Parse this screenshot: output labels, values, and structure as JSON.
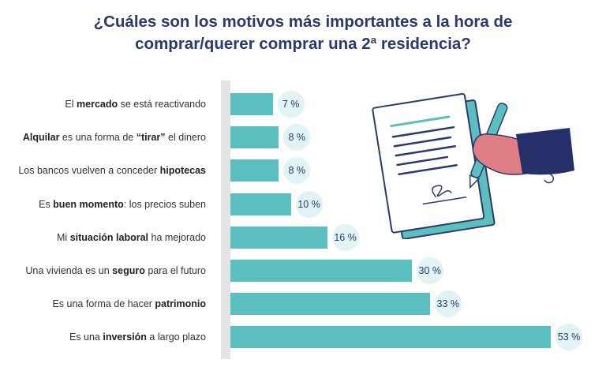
{
  "chart_data": {
    "type": "bar",
    "orientation": "horizontal",
    "title_lines": [
      "¿Cuáles son los motivos más importantes a la hora de",
      "comprar/querer comprar una 2ª residencia?"
    ],
    "categories": [
      "El mercado se está reactivando",
      "Alquilar es una forma de “tirar” el dinero",
      "Los bancos vuelven a conceder hipotecas",
      "Es buen momento: los precios suben",
      "Mi situación laboral ha mejorado",
      "Una vivienda es un seguro para el futuro",
      "Es una forma de hacer patrimonio",
      "Es una inversión a largo plazo"
    ],
    "category_parts": [
      [
        {
          "t": "El ",
          "b": false
        },
        {
          "t": "mercado",
          "b": true
        },
        {
          "t": " se está reactivando",
          "b": false
        }
      ],
      [
        {
          "t": "Alquilar",
          "b": true
        },
        {
          "t": " es una forma de ",
          "b": false
        },
        {
          "t": "“tirar”",
          "b": true
        },
        {
          "t": " el dinero",
          "b": false
        }
      ],
      [
        {
          "t": "Los bancos vuelven a conceder ",
          "b": false
        },
        {
          "t": "hipotecas",
          "b": true
        }
      ],
      [
        {
          "t": "Es ",
          "b": false
        },
        {
          "t": "buen momento",
          "b": true
        },
        {
          "t": ": los precios suben",
          "b": false
        }
      ],
      [
        {
          "t": "Mi ",
          "b": false
        },
        {
          "t": "situación laboral",
          "b": true
        },
        {
          "t": " ha mejorado",
          "b": false
        }
      ],
      [
        {
          "t": "Una vivienda es un ",
          "b": false
        },
        {
          "t": "seguro",
          "b": true
        },
        {
          "t": " para el futuro",
          "b": false
        }
      ],
      [
        {
          "t": "Es una forma de hacer ",
          "b": false
        },
        {
          "t": "patrimonio",
          "b": true
        }
      ],
      [
        {
          "t": "Es una ",
          "b": false
        },
        {
          "t": "inversión",
          "b": true
        },
        {
          "t": " a largo plazo",
          "b": false
        }
      ]
    ],
    "values": [
      7,
      8,
      8,
      10,
      16,
      30,
      33,
      53
    ],
    "value_labels": [
      "7 %",
      "8 %",
      "8 %",
      "10 %",
      "16 %",
      "30 %",
      "33 %",
      "53 %"
    ],
    "xlim": [
      0,
      53
    ],
    "grid": false,
    "legend": "none"
  },
  "colors": {
    "bar": "#5bbfbf",
    "title": "#2b3a6b",
    "track": "#e3e4e6",
    "bubble": "#e1f3f3"
  },
  "illustration": "hand-signing-document-icon"
}
